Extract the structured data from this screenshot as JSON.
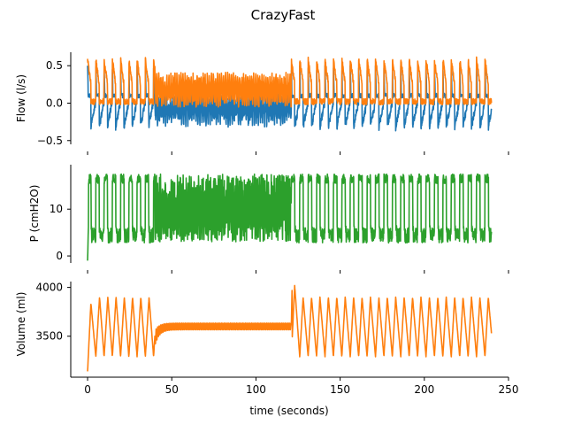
{
  "chart_data": {
    "type": "line",
    "title": "CrazyFast",
    "xlabel": "time (seconds)",
    "xlim": [
      -10,
      250
    ],
    "xticks": [
      0,
      50,
      100,
      150,
      200,
      250
    ],
    "subplots": [
      {
        "ylabel": "Flow (l/s)",
        "ylim": [
          -0.55,
          0.68
        ],
        "yticks": [
          -0.5,
          0.0,
          0.5
        ],
        "ytick_labels": [
          "−0.5",
          "0.0",
          "0.5"
        ],
        "series": [
          {
            "color": "#1f77b4",
            "pattern": "flow_measured"
          },
          {
            "color": "#ff7f0e",
            "pattern": "flow_target"
          }
        ]
      },
      {
        "ylabel": "P (cmH2O)",
        "ylim": [
          -1.5,
          19.5
        ],
        "yticks": [
          0,
          10
        ],
        "ytick_labels": [
          "0",
          "10"
        ],
        "series": [
          {
            "color": "#2ca02c",
            "pattern": "pressure"
          }
        ]
      },
      {
        "ylabel": "Volume (ml)",
        "ylim": [
          3080,
          4060
        ],
        "yticks": [
          3500,
          4000
        ],
        "ytick_labels": [
          "3500",
          "4000"
        ],
        "series": [
          {
            "color": "#ff7f0e",
            "pattern": "volume"
          }
        ]
      }
    ],
    "segments": [
      {
        "x": [
          0,
          40
        ],
        "regime": "breathing",
        "period_s": 4.9
      },
      {
        "x": [
          40,
          121
        ],
        "regime": "fast",
        "volume_plateau": 3600,
        "pressure_range": [
          3,
          17
        ]
      },
      {
        "x": [
          121,
          240
        ],
        "regime": "breathing",
        "period_s": 5.0
      }
    ],
    "volume_key_points": {
      "start": 3140,
      "first_peak": 3840,
      "dip_at_40": 3480,
      "peak_at_121": 4020,
      "end": 3310
    }
  }
}
